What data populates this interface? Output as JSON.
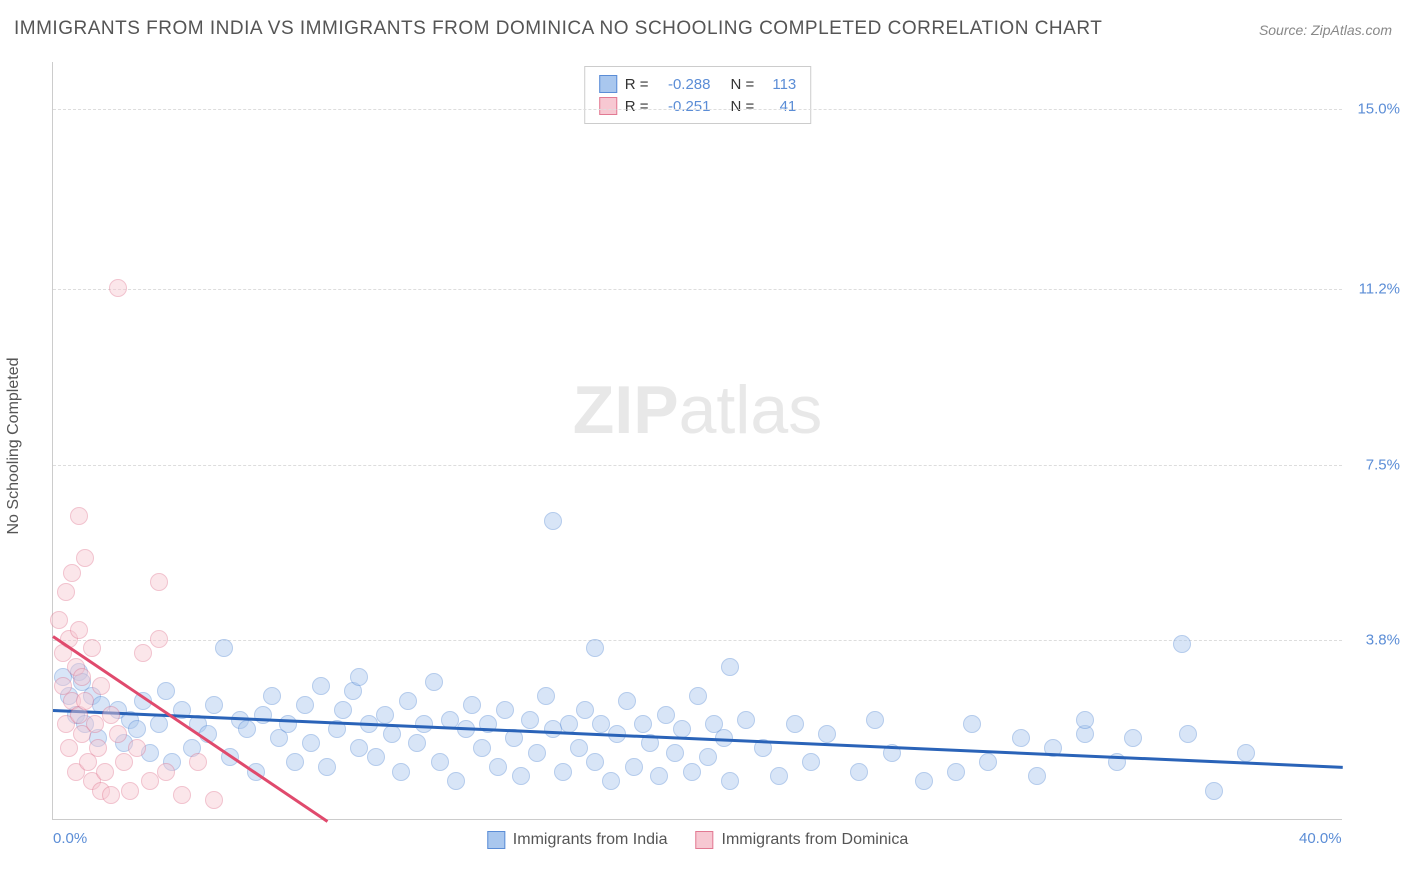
{
  "title": "IMMIGRANTS FROM INDIA VS IMMIGRANTS FROM DOMINICA NO SCHOOLING COMPLETED CORRELATION CHART",
  "source": "Source: ZipAtlas.com",
  "y_axis_label": "No Schooling Completed",
  "watermark_bold": "ZIP",
  "watermark_light": "atlas",
  "chart": {
    "type": "scatter",
    "xlim": [
      0,
      40
    ],
    "ylim": [
      0,
      16
    ],
    "x_ticks": [
      {
        "v": 0,
        "label": "0.0%"
      },
      {
        "v": 40,
        "label": "40.0%"
      }
    ],
    "y_ticks": [
      {
        "v": 3.8,
        "label": "3.8%"
      },
      {
        "v": 7.5,
        "label": "7.5%"
      },
      {
        "v": 11.2,
        "label": "11.2%"
      },
      {
        "v": 15.0,
        "label": "15.0%"
      }
    ],
    "background_color": "#ffffff",
    "grid_color": "#dddddd",
    "marker_radius": 9,
    "marker_opacity": 0.45,
    "marker_border_width": 1.2,
    "trendline_width": 3
  },
  "series": [
    {
      "name": "Immigrants from India",
      "fill_color": "#a9c7ee",
      "stroke_color": "#5b8dd6",
      "line_color": "#2a63b8",
      "R": "-0.288",
      "N": "113",
      "trend": {
        "x1": 0,
        "y1": 2.35,
        "x2": 40,
        "y2": 1.15
      },
      "points": [
        [
          0.3,
          3.0
        ],
        [
          0.5,
          2.6
        ],
        [
          0.7,
          2.2
        ],
        [
          0.8,
          3.1
        ],
        [
          0.9,
          2.9
        ],
        [
          1.0,
          2.0
        ],
        [
          1.2,
          2.6
        ],
        [
          1.4,
          1.7
        ],
        [
          1.5,
          2.4
        ],
        [
          2.0,
          2.3
        ],
        [
          2.2,
          1.6
        ],
        [
          2.4,
          2.1
        ],
        [
          2.6,
          1.9
        ],
        [
          2.8,
          2.5
        ],
        [
          3.0,
          1.4
        ],
        [
          3.3,
          2.0
        ],
        [
          3.5,
          2.7
        ],
        [
          3.7,
          1.2
        ],
        [
          4.0,
          2.3
        ],
        [
          4.3,
          1.5
        ],
        [
          4.5,
          2.0
        ],
        [
          4.8,
          1.8
        ],
        [
          5.0,
          2.4
        ],
        [
          5.3,
          3.6
        ],
        [
          5.5,
          1.3
        ],
        [
          5.8,
          2.1
        ],
        [
          6.0,
          1.9
        ],
        [
          6.3,
          1.0
        ],
        [
          6.5,
          2.2
        ],
        [
          6.8,
          2.6
        ],
        [
          7.0,
          1.7
        ],
        [
          7.3,
          2.0
        ],
        [
          7.5,
          1.2
        ],
        [
          7.8,
          2.4
        ],
        [
          8.0,
          1.6
        ],
        [
          8.3,
          2.8
        ],
        [
          8.5,
          1.1
        ],
        [
          8.8,
          1.9
        ],
        [
          9.0,
          2.3
        ],
        [
          9.3,
          2.7
        ],
        [
          9.5,
          1.5
        ],
        [
          9.5,
          3.0
        ],
        [
          9.8,
          2.0
        ],
        [
          10.0,
          1.3
        ],
        [
          10.3,
          2.2
        ],
        [
          10.5,
          1.8
        ],
        [
          10.8,
          1.0
        ],
        [
          11.0,
          2.5
        ],
        [
          11.3,
          1.6
        ],
        [
          11.5,
          2.0
        ],
        [
          11.8,
          2.9
        ],
        [
          12.0,
          1.2
        ],
        [
          12.3,
          2.1
        ],
        [
          12.5,
          0.8
        ],
        [
          12.8,
          1.9
        ],
        [
          13.0,
          2.4
        ],
        [
          13.3,
          1.5
        ],
        [
          13.5,
          2.0
        ],
        [
          13.8,
          1.1
        ],
        [
          14.0,
          2.3
        ],
        [
          14.3,
          1.7
        ],
        [
          14.5,
          0.9
        ],
        [
          14.8,
          2.1
        ],
        [
          15.0,
          1.4
        ],
        [
          15.3,
          2.6
        ],
        [
          15.5,
          1.9
        ],
        [
          15.5,
          6.3
        ],
        [
          15.8,
          1.0
        ],
        [
          16.0,
          2.0
        ],
        [
          16.3,
          1.5
        ],
        [
          16.5,
          2.3
        ],
        [
          16.8,
          3.6
        ],
        [
          16.8,
          1.2
        ],
        [
          17.0,
          2.0
        ],
        [
          17.3,
          0.8
        ],
        [
          17.5,
          1.8
        ],
        [
          17.8,
          2.5
        ],
        [
          18.0,
          1.1
        ],
        [
          18.3,
          2.0
        ],
        [
          18.5,
          1.6
        ],
        [
          18.8,
          0.9
        ],
        [
          19.0,
          2.2
        ],
        [
          19.3,
          1.4
        ],
        [
          19.5,
          1.9
        ],
        [
          19.8,
          1.0
        ],
        [
          20.0,
          2.6
        ],
        [
          20.3,
          1.3
        ],
        [
          20.5,
          2.0
        ],
        [
          20.8,
          1.7
        ],
        [
          21.0,
          0.8
        ],
        [
          21.0,
          3.2
        ],
        [
          21.5,
          2.1
        ],
        [
          22.0,
          1.5
        ],
        [
          22.5,
          0.9
        ],
        [
          23.0,
          2.0
        ],
        [
          23.5,
          1.2
        ],
        [
          24.0,
          1.8
        ],
        [
          25.0,
          1.0
        ],
        [
          25.5,
          2.1
        ],
        [
          26.0,
          1.4
        ],
        [
          27.0,
          0.8
        ],
        [
          28.0,
          1.0
        ],
        [
          28.5,
          2.0
        ],
        [
          29.0,
          1.2
        ],
        [
          30.0,
          1.7
        ],
        [
          30.5,
          0.9
        ],
        [
          31.0,
          1.5
        ],
        [
          32.0,
          1.8
        ],
        [
          32.0,
          2.1
        ],
        [
          33.0,
          1.2
        ],
        [
          33.5,
          1.7
        ],
        [
          35.0,
          3.7
        ],
        [
          35.2,
          1.8
        ],
        [
          36.0,
          0.6
        ],
        [
          37.0,
          1.4
        ]
      ]
    },
    {
      "name": "Immigrants from Dominica",
      "fill_color": "#f7c8d2",
      "stroke_color": "#e27a93",
      "line_color": "#e04a6d",
      "R": "-0.251",
      "N": "41",
      "trend": {
        "x1": 0,
        "y1": 3.9,
        "x2": 8.5,
        "y2": 0
      },
      "points": [
        [
          0.2,
          4.2
        ],
        [
          0.3,
          3.5
        ],
        [
          0.3,
          2.8
        ],
        [
          0.4,
          4.8
        ],
        [
          0.4,
          2.0
        ],
        [
          0.5,
          3.8
        ],
        [
          0.5,
          1.5
        ],
        [
          0.6,
          5.2
        ],
        [
          0.6,
          2.5
        ],
        [
          0.7,
          3.2
        ],
        [
          0.7,
          1.0
        ],
        [
          0.8,
          4.0
        ],
        [
          0.8,
          2.2
        ],
        [
          0.8,
          6.4
        ],
        [
          0.9,
          3.0
        ],
        [
          0.9,
          1.8
        ],
        [
          1.0,
          2.5
        ],
        [
          1.0,
          5.5
        ],
        [
          1.1,
          1.2
        ],
        [
          1.2,
          3.6
        ],
        [
          1.2,
          0.8
        ],
        [
          1.3,
          2.0
        ],
        [
          1.4,
          1.5
        ],
        [
          1.5,
          2.8
        ],
        [
          1.5,
          0.6
        ],
        [
          1.6,
          1.0
        ],
        [
          1.8,
          2.2
        ],
        [
          1.8,
          0.5
        ],
        [
          2.0,
          1.8
        ],
        [
          2.0,
          11.2
        ],
        [
          2.2,
          1.2
        ],
        [
          2.4,
          0.6
        ],
        [
          2.6,
          1.5
        ],
        [
          2.8,
          3.5
        ],
        [
          3.0,
          0.8
        ],
        [
          3.3,
          5.0
        ],
        [
          3.3,
          3.8
        ],
        [
          3.5,
          1.0
        ],
        [
          4.0,
          0.5
        ],
        [
          4.5,
          1.2
        ],
        [
          5.0,
          0.4
        ]
      ]
    }
  ],
  "legend_bottom": [
    {
      "label": "Immigrants from India",
      "fill": "#a9c7ee",
      "stroke": "#5b8dd6"
    },
    {
      "label": "Immigrants from Dominica",
      "fill": "#f7c8d2",
      "stroke": "#e27a93"
    }
  ]
}
